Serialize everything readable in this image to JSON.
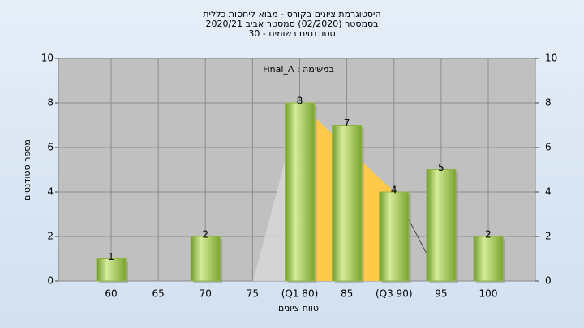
{
  "chart_data": {
    "type": "bar",
    "title": "היסטוגרמת ציונים בקורס - מבוא ליחסות כללית",
    "subtitle": "בסמסטר  (02/2020)  סמסטר אביב 2020/21",
    "subtitle2": "סטודנטים רשומים - 30",
    "annotation": "Final_A : במשימה",
    "x_label": "טווח ציונים",
    "y_label": "מספר סטודנטים",
    "categories": [
      "60",
      "65",
      "70",
      "75",
      "(Q1 80)",
      "85",
      "(Q3 90)",
      "95",
      "100"
    ],
    "values": [
      1,
      0,
      2,
      0,
      8,
      7,
      4,
      5,
      2
    ],
    "color": "#8db43f",
    "ylim": [
      0,
      10
    ],
    "yticks": [
      0,
      2,
      4,
      6,
      8,
      10
    ],
    "y2lim": [
      0,
      10
    ],
    "y2ticks": [
      0,
      2,
      4,
      6,
      8,
      10
    ],
    "grid": true
  }
}
